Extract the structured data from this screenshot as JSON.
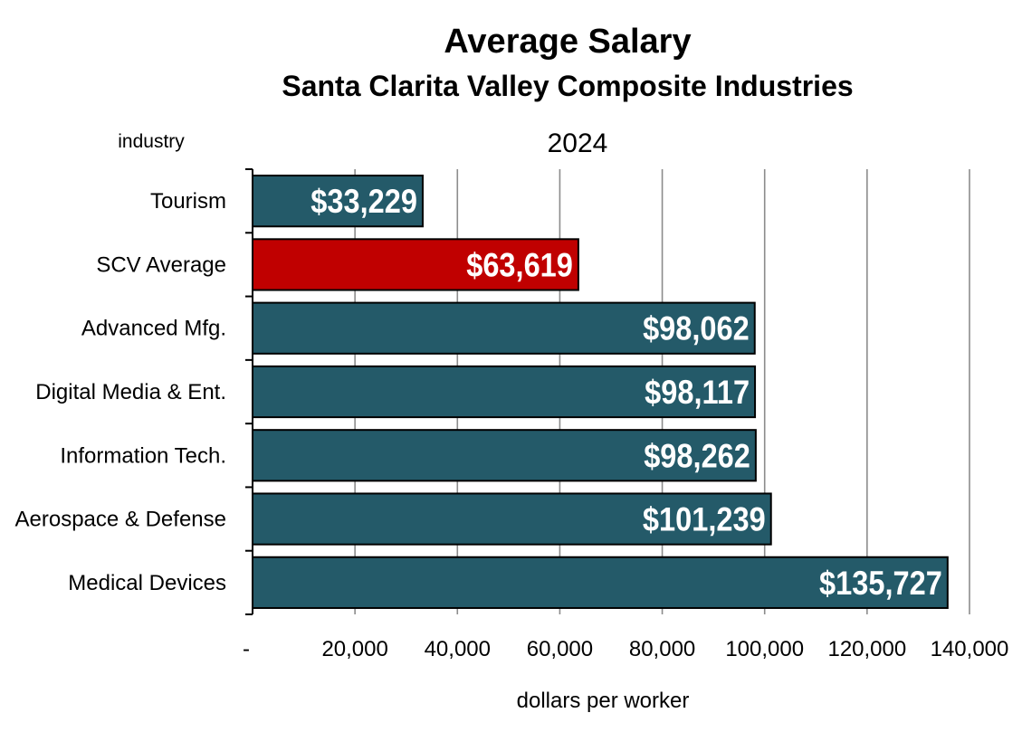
{
  "chart_data": {
    "type": "bar",
    "orientation": "horizontal",
    "title": "Average Salary",
    "subtitle": "Santa Clarita Valley Composite Industries",
    "year_label": "2024",
    "ylabel": "industry",
    "xlabel": "dollars per worker",
    "categories": [
      "Tourism",
      "SCV Average",
      "Advanced Mfg.",
      "Digital Media & Ent.",
      "Information Tech.",
      "Aerospace & Defense",
      "Medical Devices"
    ],
    "values": [
      33229,
      63619,
      98062,
      98117,
      98262,
      101239,
      135727
    ],
    "data_labels": [
      "$33,229",
      "$63,619",
      "$98,062",
      "$98,117",
      "$98,262",
      "$101,239",
      "$135,727"
    ],
    "bar_colors": [
      "#245a69",
      "#c00000",
      "#245a69",
      "#245a69",
      "#245a69",
      "#245a69",
      "#245a69"
    ],
    "xlim": [
      0,
      140000
    ],
    "x_ticks": [
      0,
      20000,
      40000,
      60000,
      80000,
      100000,
      120000,
      140000
    ],
    "x_tick_labels": [
      "-",
      "20,000",
      "40,000",
      "60,000",
      "80,000",
      "100,000",
      "120,000",
      "140,000"
    ],
    "grid": "vertical",
    "legend": "none"
  }
}
